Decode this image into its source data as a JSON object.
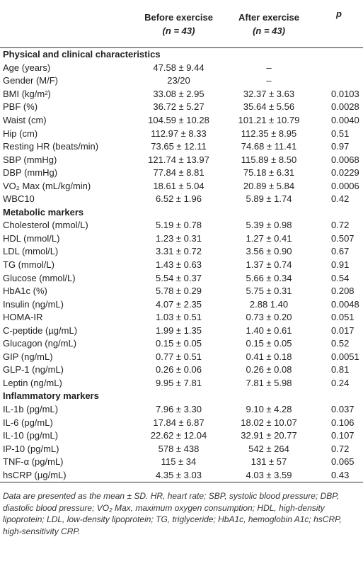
{
  "header": {
    "before": [
      "Before exercise",
      "(n = 43)"
    ],
    "after": [
      "After exercise",
      "(n = 43)"
    ],
    "p": "p"
  },
  "sections": [
    {
      "title": "Physical and clinical characteristics",
      "rows": [
        [
          "Age (years)",
          "47.58 ± 9.44",
          "–"
        ],
        [
          "Gender (M/F)",
          "23/20",
          "–"
        ],
        [
          "BMI (kg/m²)",
          "33.08 ± 2.95",
          "32.37 ± 3.63",
          "0.0103"
        ],
        [
          "PBF (%)",
          "36.72 ± 5.27",
          "35.64 ± 5.56",
          "0.0028"
        ],
        [
          "Waist (cm)",
          "104.59 ± 10.28",
          "101.21 ± 10.79",
          "0.0040"
        ],
        [
          "Hip (cm)",
          "112.97 ± 8.33",
          "112.35 ± 8.95",
          "0.51"
        ],
        [
          "Resting HR (beats/min)",
          "73.65 ± 12.11",
          "74.68 ± 11.41",
          "0.97"
        ],
        [
          "SBP (mmHg)",
          "121.74 ± 13.97",
          "115.89 ± 8.50",
          "0.0068"
        ],
        [
          "DBP (mmHg)",
          "77.84 ± 8.81",
          "75.18 ± 6.31",
          "0.0229"
        ],
        [
          "VO₂ Max (mL/kg/min)",
          "18.61 ± 5.04",
          "20.89 ± 5.84",
          "0.0006"
        ],
        [
          "WBC10",
          "6.52 ± 1.96",
          "5.89 ± 1.74",
          "0.42"
        ]
      ]
    },
    {
      "title": "Metabolic markers",
      "rows": [
        [
          "Cholesterol (mmol/L)",
          "5.19 ± 0.78",
          "5.39 ± 0.98",
          "0.72"
        ],
        [
          "HDL (mmol/L)",
          "1.23 ± 0.31",
          "1.27 ± 0.41",
          "0.507"
        ],
        [
          "LDL (mmol/L)",
          "3.31 ± 0.72",
          "3.56 ± 0.90",
          "0.67"
        ],
        [
          "TG (mmol/L)",
          "1.43 ± 0.63",
          "1.37 ± 0.74",
          "0.91"
        ],
        [
          "Glucose (mmol/L)",
          "5.54 ± 0.37",
          "5.66 ± 0.34",
          "0.54"
        ],
        [
          "HbA1c (%)",
          "5.78 ± 0.29",
          "5.75 ± 0.31",
          "0.208"
        ],
        [
          "Insulin (ng/mL)",
          "4.07 ± 2.35",
          "2.88 1.40",
          "0.0048"
        ],
        [
          "HOMA-IR",
          "1.03 ± 0.51",
          "0.73 ± 0.20",
          "0.051"
        ],
        [
          "C-peptide (µg/mL)",
          "1.99 ± 1.35",
          "1.40 ± 0.61",
          "0.017"
        ],
        [
          "Glucagon (ng/mL)",
          "0.15 ± 0.05",
          "0.15 ± 0.05",
          "0.52"
        ],
        [
          "GIP (ng/mL)",
          "0.77 ± 0.51",
          "0.41 ± 0.18",
          "0.0051"
        ],
        [
          "GLP-1 (ng/mL)",
          "0.26 ± 0.06",
          "0.26 ± 0.08",
          "0.81"
        ],
        [
          "Leptin (ng/mL)",
          "9.95 ± 7.81",
          "7.81 ± 5.98",
          "0.24"
        ]
      ]
    },
    {
      "title": "Inflammatory markers",
      "rows": [
        [
          "IL-1b (pg/mL)",
          "7.96 ± 3.30",
          "9.10 ± 4.28",
          "0.037"
        ],
        [
          "IL-6 (pg/mL)",
          "17.84 ± 6.87",
          "18.02 ± 10.07",
          "0.106"
        ],
        [
          "IL-10 (pg/mL)",
          "22.62 ± 12.04",
          "32.91 ± 20.77",
          "0.107"
        ],
        [
          "IP-10 (pg/mL)",
          "578 ± 438",
          "542 ± 264",
          "0.72"
        ],
        [
          "TNF-α (pg/mL)",
          "115 ± 34",
          "131 ± 57",
          "0.065"
        ],
        [
          "hsCRP (µg/mL)",
          "4.35 ± 3.03",
          "4.03 ± 3.59",
          "0.43"
        ]
      ]
    }
  ],
  "footnote": "Data are presented as the mean ± SD. HR, heart rate; SBP, systolic blood pressure; DBP, diastolic blood pressure; VO₂ Max, maximum oxygen consumption; HDL, high-density lipoprotein; LDL, low-density lipoprotein; TG, triglyceride; HbA1c, hemoglobin A1c; hsCRP, high-sensitivity CRP."
}
